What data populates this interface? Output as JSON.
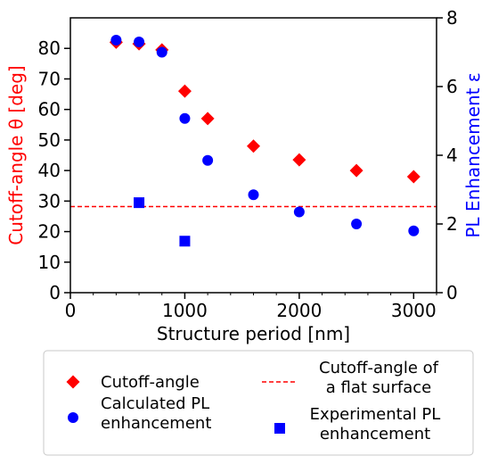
{
  "chart_data": {
    "type": "scatter",
    "xlabel": "Structure period [nm]",
    "ylabel_left": "Cutoff-angle θ [deg]",
    "ylabel_right": "PL Enhancement ε",
    "xlim": [
      0,
      3200
    ],
    "ylim_left": [
      0,
      90
    ],
    "ylim_right": [
      0,
      8
    ],
    "x_ticks": [
      0,
      1000,
      2000,
      3000
    ],
    "x_minor_step": 200,
    "y_left_ticks": [
      0,
      10,
      20,
      30,
      40,
      50,
      60,
      70,
      80
    ],
    "y_right_ticks": [
      0,
      2,
      4,
      6,
      8
    ],
    "grid": false,
    "legend_position": "bottom-outside",
    "series": [
      {
        "name": "Cutoff-angle",
        "axis": "left",
        "marker": "diamond",
        "color": "#ff0000",
        "x": [
          400,
          600,
          800,
          1000,
          1200,
          1600,
          2000,
          2500,
          3000
        ],
        "y": [
          82,
          81.5,
          79.5,
          66,
          57,
          48,
          43.5,
          40,
          38
        ]
      },
      {
        "name": "Cutoff-angle of\na flat surface",
        "axis": "left",
        "marker": "dashed-line",
        "color": "#ff0000",
        "y": 28.2
      },
      {
        "name": "Calculated PL\nenhancement",
        "axis": "right",
        "marker": "circle",
        "color": "#0000ff",
        "x": [
          400,
          600,
          800,
          1000,
          1200,
          1600,
          2000,
          2500,
          3000
        ],
        "y": [
          7.35,
          7.3,
          7.0,
          5.07,
          3.85,
          2.85,
          2.35,
          2.0,
          1.8
        ]
      },
      {
        "name": "Experimental PL\nenhancement",
        "axis": "right",
        "marker": "square",
        "color": "#0000ff",
        "x": [
          600,
          1000
        ],
        "y": [
          2.62,
          1.5
        ]
      }
    ]
  }
}
